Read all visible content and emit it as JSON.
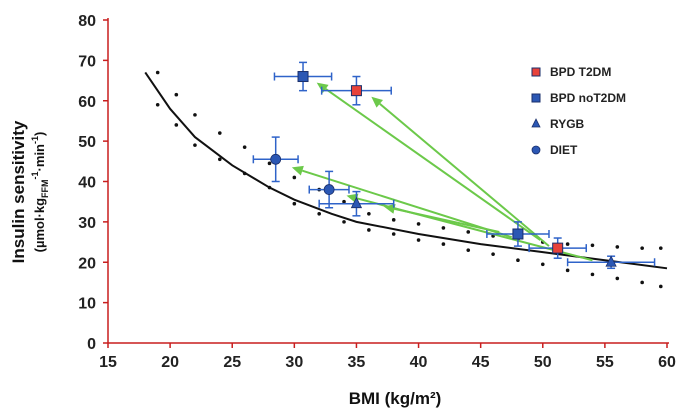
{
  "chart_data": {
    "type": "scatter",
    "xlabel": "BMI (kg/m²)",
    "ylabel": {
      "title": "Insulin sensitivity",
      "units_prefix": "(µmol·kg",
      "units_sub": "FFM",
      "units_mid": "·min",
      "units_end": ")",
      "sup1": "-1",
      "sup2": "-1"
    },
    "xlim": [
      15,
      60
    ],
    "ylim": [
      0,
      80
    ],
    "xticks": [
      "15",
      "20",
      "25",
      "30",
      "35",
      "40",
      "45",
      "50",
      "55",
      "60"
    ],
    "yticks": [
      "0",
      "10",
      "20",
      "30",
      "40",
      "50",
      "60",
      "70",
      "80"
    ],
    "grid": false,
    "legend_position": "top-right",
    "colors": {
      "axis": "#c81e1e",
      "fit_line": "#111111",
      "arrow": "#6cc94a",
      "error_bar": "#2f63c9",
      "red_marker": "#e8423a",
      "blue_marker": "#2b57b4"
    },
    "series": [
      {
        "name": "BPD T2DM",
        "marker": "square",
        "fill": "#e8423a",
        "points": [
          {
            "x": 51.2,
            "y": 23.5,
            "xerr": 2.3,
            "yerr": 2.5
          },
          {
            "x": 35.0,
            "y": 62.5,
            "xerr": 2.8,
            "yerr": 3.5
          }
        ]
      },
      {
        "name": "BPD noT2DM",
        "marker": "square",
        "fill": "#2b57b4",
        "points": [
          {
            "x": 48.0,
            "y": 27.0,
            "xerr": 2.5,
            "yerr": 3.0
          },
          {
            "x": 30.7,
            "y": 66.0,
            "xerr": 2.3,
            "yerr": 3.5
          }
        ]
      },
      {
        "name": "RYGB",
        "marker": "triangle",
        "fill": "#2b57b4",
        "points": [
          {
            "x": 55.5,
            "y": 20.0,
            "xerr": 3.5,
            "yerr": 1.5
          },
          {
            "x": 35.0,
            "y": 34.5,
            "xerr": 3.0,
            "yerr": 3.0
          }
        ]
      },
      {
        "name": "DIET",
        "marker": "circle",
        "fill": "#2b57b4",
        "points": [
          {
            "x": 28.5,
            "y": 45.5,
            "xerr": 1.8,
            "yerr": 5.5
          },
          {
            "x": 32.8,
            "y": 38.0,
            "xerr": 1.6,
            "yerr": 4.5
          }
        ]
      }
    ],
    "arrows": [
      {
        "from": [
          50.5,
          24.0
        ],
        "to": [
          36.2,
          61.0
        ]
      },
      {
        "from": [
          49.8,
          25.5
        ],
        "to": [
          31.8,
          64.5
        ]
      },
      {
        "from": [
          46.5,
          27.5
        ],
        "to": [
          37.2,
          33.8
        ]
      },
      {
        "from": [
          47.5,
          26.2
        ],
        "to": [
          29.8,
          43.5
        ]
      },
      {
        "from": [
          54.0,
          20.5
        ],
        "to": [
          34.2,
          36.5
        ]
      }
    ],
    "fit_curve": [
      [
        18,
        67
      ],
      [
        20,
        58
      ],
      [
        22,
        51
      ],
      [
        25,
        44
      ],
      [
        28,
        38.5
      ],
      [
        30,
        35.5
      ],
      [
        33,
        32
      ],
      [
        35,
        30
      ],
      [
        40,
        27
      ],
      [
        45,
        24.5
      ],
      [
        50,
        22.5
      ],
      [
        55,
        20.5
      ],
      [
        60,
        18.5
      ]
    ],
    "confidence_band_upper": [
      [
        19,
        67
      ],
      [
        20.5,
        61.5
      ],
      [
        22,
        56.5
      ],
      [
        24,
        52
      ],
      [
        26,
        48.5
      ],
      [
        28,
        44.5
      ],
      [
        30,
        41
      ],
      [
        32,
        38
      ],
      [
        34,
        35
      ],
      [
        36,
        32
      ],
      [
        38,
        30.5
      ],
      [
        40,
        29.5
      ],
      [
        42,
        28.5
      ],
      [
        44,
        27.5
      ],
      [
        46,
        26.5
      ],
      [
        48,
        25.5
      ],
      [
        50,
        25
      ],
      [
        52,
        24.5
      ],
      [
        54,
        24.2
      ],
      [
        56,
        23.8
      ],
      [
        58,
        23.5
      ],
      [
        59.5,
        23.5
      ]
    ],
    "confidence_band_lower": [
      [
        19,
        59
      ],
      [
        20.5,
        54
      ],
      [
        22,
        49
      ],
      [
        24,
        45.5
      ],
      [
        26,
        42
      ],
      [
        28,
        38.5
      ],
      [
        30,
        34.5
      ],
      [
        32,
        32
      ],
      [
        34,
        30
      ],
      [
        36,
        28
      ],
      [
        38,
        27
      ],
      [
        40,
        25.5
      ],
      [
        42,
        24.5
      ],
      [
        44,
        23
      ],
      [
        46,
        22
      ],
      [
        48,
        20.5
      ],
      [
        50,
        19.5
      ],
      [
        52,
        18
      ],
      [
        54,
        17
      ],
      [
        56,
        16
      ],
      [
        58,
        15
      ],
      [
        59.5,
        14
      ]
    ]
  }
}
